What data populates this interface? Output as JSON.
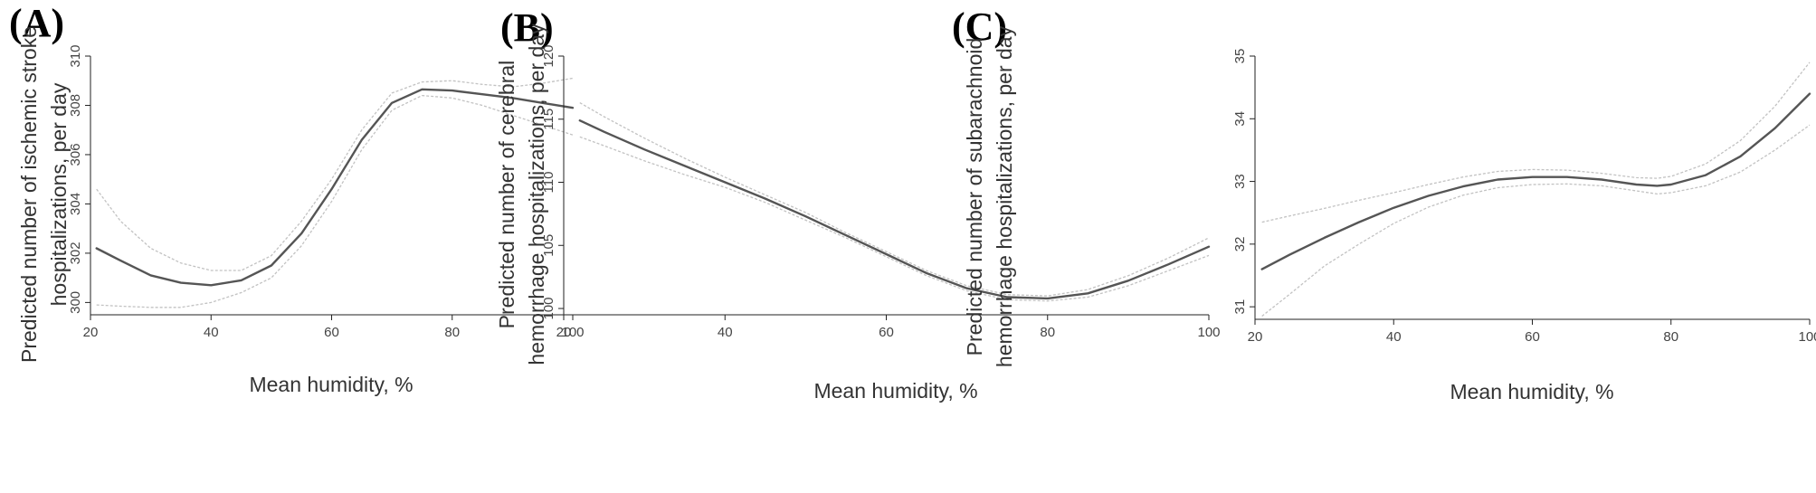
{
  "chart_data": [
    {
      "type": "line",
      "panel_label": "(A)",
      "xlabel": "Mean humidity,  %",
      "ylabel_lines": [
        "Predicted number of ischemic stroke",
        "hospitalizations, per day"
      ],
      "xlim": [
        20,
        100
      ],
      "ylim": [
        299.5,
        310
      ],
      "xticks": [
        20,
        40,
        60,
        80,
        100
      ],
      "yticks": [
        300,
        302,
        304,
        306,
        308,
        310
      ],
      "grid": false,
      "series": [
        {
          "role": "estimate",
          "x": [
            21,
            25,
            30,
            35,
            40,
            45,
            50,
            55,
            60,
            65,
            70,
            75,
            80,
            85,
            90,
            95,
            100
          ],
          "y": [
            302.2,
            301.7,
            301.1,
            300.8,
            300.7,
            300.9,
            301.5,
            302.8,
            304.6,
            306.6,
            308.1,
            308.65,
            308.6,
            308.45,
            308.3,
            308.1,
            307.9
          ]
        },
        {
          "role": "upper-ci",
          "x": [
            21,
            25,
            30,
            35,
            40,
            45,
            50,
            55,
            60,
            65,
            70,
            75,
            80,
            85,
            90,
            95,
            100
          ],
          "y": [
            304.6,
            303.3,
            302.2,
            301.6,
            301.3,
            301.3,
            301.9,
            303.3,
            305.0,
            307.0,
            308.5,
            308.95,
            309.0,
            308.85,
            308.75,
            308.9,
            309.1
          ]
        },
        {
          "role": "lower-ci",
          "x": [
            21,
            25,
            30,
            35,
            40,
            45,
            50,
            55,
            60,
            65,
            70,
            75,
            80,
            85,
            90,
            95,
            100
          ],
          "y": [
            299.9,
            299.85,
            299.8,
            299.8,
            300.0,
            300.4,
            301.0,
            302.3,
            304.1,
            306.2,
            307.8,
            308.4,
            308.3,
            308.0,
            307.6,
            307.2,
            306.8
          ]
        }
      ]
    },
    {
      "type": "line",
      "panel_label": "(B)",
      "xlabel": "Mean humidity,  %",
      "ylabel_lines": [
        "Predicted number of cerebral",
        "hemorrhage hospitalizations, per day"
      ],
      "xlim": [
        20,
        100
      ],
      "ylim": [
        99.5,
        120
      ],
      "xticks": [
        20,
        40,
        60,
        80,
        100
      ],
      "yticks": [
        100,
        105,
        110,
        115,
        120
      ],
      "grid": false,
      "series": [
        {
          "role": "estimate",
          "x": [
            22,
            25,
            30,
            35,
            40,
            45,
            50,
            55,
            60,
            65,
            70,
            75,
            80,
            85,
            90,
            95,
            100
          ],
          "y": [
            114.9,
            114.0,
            112.6,
            111.3,
            110.0,
            108.7,
            107.3,
            105.8,
            104.3,
            102.8,
            101.6,
            100.9,
            100.8,
            101.2,
            102.2,
            103.5,
            104.9
          ]
        },
        {
          "role": "upper-ci",
          "x": [
            22,
            25,
            30,
            35,
            40,
            45,
            50,
            55,
            60,
            65,
            70,
            75,
            80,
            85,
            90,
            95,
            100
          ],
          "y": [
            116.3,
            115.2,
            113.5,
            111.9,
            110.4,
            109.0,
            107.6,
            106.0,
            104.5,
            103.0,
            101.8,
            101.1,
            101.0,
            101.5,
            102.6,
            104.0,
            105.6
          ]
        },
        {
          "role": "lower-ci",
          "x": [
            22,
            25,
            30,
            35,
            40,
            45,
            50,
            55,
            60,
            65,
            70,
            75,
            80,
            85,
            90,
            95,
            100
          ],
          "y": [
            113.6,
            112.9,
            111.7,
            110.6,
            109.6,
            108.4,
            107.0,
            105.6,
            104.1,
            102.6,
            101.4,
            100.7,
            100.6,
            100.9,
            101.8,
            103.0,
            104.2
          ]
        }
      ]
    },
    {
      "type": "line",
      "panel_label": "(C)",
      "xlabel": "Mean humidity,  %",
      "ylabel_lines": [
        "Predicted number of subarachnoid",
        "hemorrhage hospitalizations, per day"
      ],
      "xlim": [
        20,
        100
      ],
      "ylim": [
        30.8,
        35
      ],
      "xticks": [
        20,
        40,
        60,
        80,
        100
      ],
      "yticks": [
        31,
        32,
        33,
        34,
        35
      ],
      "grid": false,
      "series": [
        {
          "role": "estimate",
          "x": [
            21,
            25,
            30,
            35,
            40,
            45,
            50,
            55,
            60,
            65,
            70,
            75,
            78,
            80,
            85,
            90,
            95,
            100
          ],
          "y": [
            31.6,
            31.83,
            32.1,
            32.35,
            32.58,
            32.77,
            32.92,
            33.03,
            33.07,
            33.07,
            33.03,
            32.95,
            32.93,
            32.95,
            33.1,
            33.4,
            33.85,
            34.4
          ]
        },
        {
          "role": "upper-ci",
          "x": [
            21,
            25,
            30,
            35,
            40,
            45,
            50,
            55,
            60,
            65,
            70,
            75,
            78,
            80,
            85,
            90,
            95,
            100
          ],
          "y": [
            32.35,
            32.45,
            32.57,
            32.7,
            32.82,
            32.95,
            33.07,
            33.16,
            33.19,
            33.18,
            33.13,
            33.06,
            33.05,
            33.08,
            33.28,
            33.65,
            34.2,
            34.9
          ]
        },
        {
          "role": "lower-ci",
          "x": [
            21,
            25,
            30,
            35,
            40,
            45,
            50,
            55,
            60,
            65,
            70,
            75,
            78,
            80,
            85,
            90,
            95,
            100
          ],
          "y": [
            30.85,
            31.2,
            31.65,
            32.0,
            32.33,
            32.59,
            32.78,
            32.9,
            32.95,
            32.96,
            32.93,
            32.85,
            32.8,
            32.82,
            32.93,
            33.15,
            33.5,
            33.9
          ]
        }
      ]
    }
  ]
}
